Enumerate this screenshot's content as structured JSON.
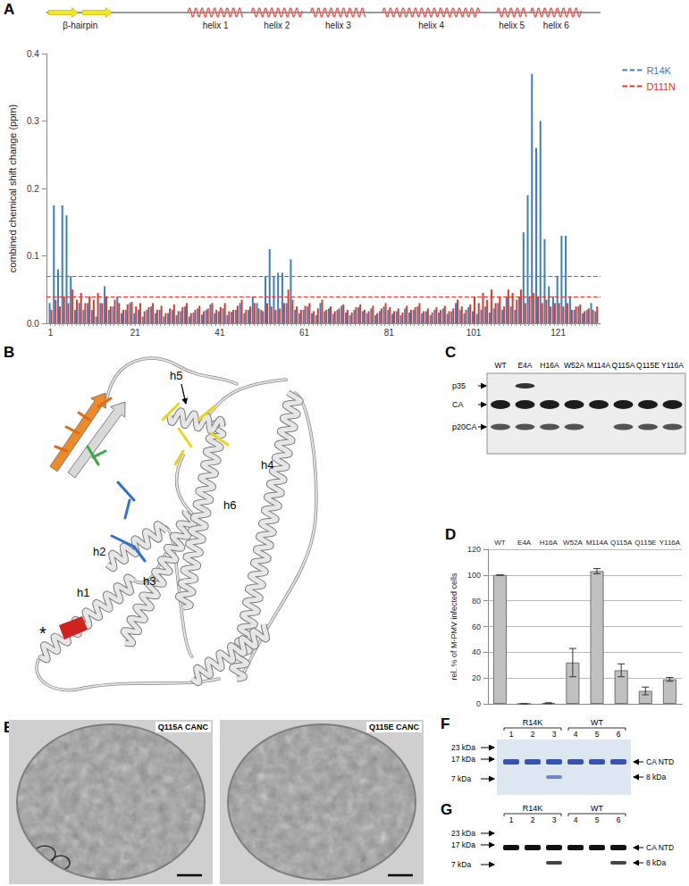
{
  "chart_data": [
    {
      "type": "bar",
      "panel_label": "A",
      "y_label": "combined chemical shift change (ppm)",
      "x": [
        1,
        2,
        3,
        4,
        5,
        6,
        7,
        8,
        9,
        10,
        11,
        12,
        13,
        14,
        15,
        16,
        17,
        18,
        19,
        20,
        21,
        22,
        23,
        24,
        25,
        26,
        27,
        28,
        29,
        30,
        31,
        32,
        33,
        34,
        35,
        36,
        37,
        38,
        39,
        40,
        41,
        42,
        43,
        44,
        45,
        46,
        47,
        48,
        49,
        50,
        51,
        52,
        53,
        54,
        55,
        56,
        57,
        58,
        59,
        60,
        61,
        62,
        63,
        64,
        65,
        66,
        67,
        68,
        69,
        70,
        71,
        72,
        73,
        74,
        75,
        76,
        77,
        78,
        79,
        80,
        81,
        82,
        83,
        84,
        85,
        86,
        87,
        88,
        89,
        90,
        91,
        92,
        93,
        94,
        95,
        96,
        97,
        98,
        99,
        100,
        101,
        102,
        103,
        104,
        105,
        106,
        107,
        108,
        109,
        110,
        111,
        112,
        113,
        114,
        115,
        116,
        117,
        118,
        119,
        120,
        121,
        122,
        123,
        124,
        125,
        126,
        127,
        128,
        129,
        130
      ],
      "xlim": [
        0,
        131
      ],
      "xticks": [
        1,
        21,
        41,
        61,
        81,
        101,
        121
      ],
      "ylim": [
        0,
        0.4
      ],
      "yticks": [
        {
          "value": 0,
          "label": "0.0"
        },
        {
          "value": 0.1,
          "label": "0.1"
        },
        {
          "value": 0.2,
          "label": "0.2"
        },
        {
          "value": 0.3,
          "label": "0.3"
        },
        {
          "value": 0.4,
          "label": "0.4"
        }
      ],
      "grid": false,
      "legend": "upper right",
      "series": [
        {
          "name": "R14K",
          "color": "#3d7ebf",
          "threshold": 0.072,
          "values": [
            0.03,
            0.175,
            0.08,
            0.175,
            0.16,
            0.07,
            0.02,
            0.03,
            0.02,
            0.03,
            0.02,
            0.01,
            0.03,
            0.055,
            0.02,
            0.025,
            0.04,
            0.015,
            0.02,
            0.03,
            0.015,
            0.02,
            0.01,
            0.02,
            0.025,
            0.015,
            0.02,
            0.01,
            0.015,
            0.02,
            0.012,
            0.018,
            0.025,
            0.01,
            0.016,
            0.022,
            0.013,
            0.02,
            0.028,
            0.015,
            0.018,
            0.022,
            0.012,
            0.017,
            0.02,
            0.03,
            0.015,
            0.02,
            0.04,
            0.03,
            0.02,
            0.07,
            0.11,
            0.07,
            0.075,
            0.075,
            0.03,
            0.095,
            0.02,
            0.015,
            0.02,
            0.025,
            0.015,
            0.012,
            0.03,
            0.018,
            0.022,
            0.014,
            0.02,
            0.026,
            0.016,
            0.012,
            0.02,
            0.024,
            0.018,
            0.015,
            0.022,
            0.012,
            0.018,
            0.025,
            0.02,
            0.014,
            0.018,
            0.012,
            0.022,
            0.016,
            0.02,
            0.025,
            0.015,
            0.018,
            0.012,
            0.02,
            0.016,
            0.022,
            0.014,
            0.018,
            0.03,
            0.02,
            0.015,
            0.024,
            0.018,
            0.014,
            0.02,
            0.025,
            0.016,
            0.022,
            0.03,
            0.02,
            0.04,
            0.025,
            0.02,
            0.04,
            0.135,
            0.19,
            0.37,
            0.26,
            0.3,
            0.125,
            0.055,
            0.04,
            0.07,
            0.13,
            0.13,
            0.04,
            0.02,
            0.025,
            0.015,
            0.02,
            0.03,
            0.018
          ]
        },
        {
          "name": "D111N",
          "color": "#d93a2b",
          "threshold": 0.035,
          "values": [
            0.02,
            0.035,
            0.025,
            0.04,
            0.03,
            0.05,
            0.035,
            0.045,
            0.03,
            0.04,
            0.035,
            0.045,
            0.03,
            0.04,
            0.025,
            0.035,
            0.03,
            0.02,
            0.028,
            0.032,
            0.025,
            0.03,
            0.018,
            0.024,
            0.03,
            0.02,
            0.026,
            0.015,
            0.022,
            0.028,
            0.018,
            0.024,
            0.03,
            0.015,
            0.02,
            0.026,
            0.018,
            0.022,
            0.03,
            0.02,
            0.024,
            0.03,
            0.018,
            0.02,
            0.026,
            0.035,
            0.02,
            0.025,
            0.03,
            0.022,
            0.018,
            0.03,
            0.025,
            0.02,
            0.022,
            0.03,
            0.05,
            0.035,
            0.025,
            0.02,
            0.026,
            0.03,
            0.018,
            0.022,
            0.035,
            0.02,
            0.025,
            0.018,
            0.022,
            0.028,
            0.02,
            0.016,
            0.024,
            0.028,
            0.02,
            0.018,
            0.026,
            0.015,
            0.022,
            0.03,
            0.024,
            0.018,
            0.022,
            0.016,
            0.026,
            0.02,
            0.024,
            0.03,
            0.018,
            0.022,
            0.016,
            0.024,
            0.02,
            0.026,
            0.018,
            0.022,
            0.035,
            0.025,
            0.02,
            0.028,
            0.04,
            0.03,
            0.045,
            0.035,
            0.05,
            0.03,
            0.04,
            0.025,
            0.05,
            0.045,
            0.035,
            0.05,
            0.03,
            0.04,
            0.045,
            0.04,
            0.03,
            0.035,
            0.025,
            0.03,
            0.03,
            0.025,
            0.03,
            0.02,
            0.025,
            0.028,
            0.018,
            0.022,
            0.02,
            0.025
          ]
        }
      ],
      "secondary_structure": [
        {
          "label": "β-hairpin",
          "elements": [
            {
              "kind": "strand",
              "start": 1,
              "end": 7
            },
            {
              "kind": "strand",
              "start": 9,
              "end": 15
            }
          ]
        },
        {
          "label": "helix 1",
          "elements": [
            {
              "kind": "helix",
              "start": 34,
              "end": 46
            }
          ]
        },
        {
          "label": "helix 2",
          "elements": [
            {
              "kind": "helix",
              "start": 49,
              "end": 60
            }
          ]
        },
        {
          "label": "helix 3",
          "elements": [
            {
              "kind": "helix",
              "start": 63,
              "end": 75
            }
          ]
        },
        {
          "label": "helix 4",
          "elements": [
            {
              "kind": "helix",
              "start": 80,
              "end": 102
            }
          ]
        },
        {
          "label": "helix 5",
          "elements": [
            {
              "kind": "helix",
              "start": 107,
              "end": 113
            }
          ]
        },
        {
          "label": "helix 6",
          "elements": [
            {
              "kind": "helix",
              "start": 115,
              "end": 126
            }
          ]
        }
      ]
    },
    {
      "type": "bar",
      "panel_label": "D",
      "y_label": "rel. % of M-PMV infected cells",
      "categories": [
        "WT",
        "E4A",
        "H16A",
        "W52A",
        "M114A",
        "Q115A",
        "Q115E",
        "Y116A"
      ],
      "values": [
        100,
        0,
        0.5,
        32,
        103,
        26,
        10,
        19
      ],
      "errors": [
        0,
        0,
        0.3,
        11,
        2,
        5,
        3,
        1.5
      ],
      "color": "#c0c0c0",
      "ylim": [
        0,
        120
      ],
      "yticks": [
        0,
        20,
        40,
        60,
        80,
        100,
        120
      ],
      "grid": true
    }
  ],
  "panels": {
    "B": {
      "panel_label": "B",
      "labels": [
        "h1",
        "h2",
        "h3",
        "h4",
        "h5",
        "h6",
        "*"
      ]
    },
    "C": {
      "panel_label": "C",
      "band_labels": [
        "p35",
        "CA",
        "p20CA"
      ],
      "lanes": [
        {
          "label": "WT",
          "bands": [
            "CA",
            "p20CA"
          ]
        },
        {
          "label": "E4A",
          "bands": [
            "p35",
            "CA",
            "p20CA"
          ]
        },
        {
          "label": "H16A",
          "bands": [
            "CA",
            "p20CA"
          ]
        },
        {
          "label": "W52A",
          "bands": [
            "CA",
            "p20CA"
          ]
        },
        {
          "label": "M114A",
          "bands": [
            "CA"
          ]
        },
        {
          "label": "Q115A",
          "bands": [
            "CA",
            "p20CA"
          ]
        },
        {
          "label": "Q115E",
          "bands": [
            "CA",
            "p20CA"
          ]
        },
        {
          "label": "Y116A",
          "bands": [
            "CA",
            "p20CA"
          ]
        }
      ]
    },
    "E": {
      "panel_label": "E",
      "images": [
        "Q115A CANC",
        "Q115E CANC"
      ]
    },
    "F": {
      "panel_label": "F",
      "markers": [
        "23 kDa",
        "17 kDa",
        "7 kDa"
      ],
      "band_labels": [
        "CA NTD",
        "8 kDa"
      ],
      "groups": [
        {
          "label": "R14K",
          "lanes": [
            "1",
            "2",
            "3"
          ]
        },
        {
          "label": "WT",
          "lanes": [
            "4",
            "5",
            "6"
          ]
        }
      ],
      "lanes": [
        {
          "label": "1",
          "bands": [
            "CA NTD"
          ]
        },
        {
          "label": "2",
          "bands": [
            "CA NTD"
          ]
        },
        {
          "label": "3",
          "bands": [
            "CA NTD",
            "8 kDa"
          ]
        },
        {
          "label": "4",
          "bands": [
            "CA NTD"
          ]
        },
        {
          "label": "5",
          "bands": [
            "CA NTD"
          ]
        },
        {
          "label": "6",
          "bands": [
            "CA NTD"
          ]
        }
      ]
    },
    "G": {
      "panel_label": "G",
      "markers": [
        "23 kDa",
        "17 kDa",
        "7 kDa"
      ],
      "band_labels": [
        "CA NTD",
        "8 kDa"
      ],
      "groups": [
        {
          "label": "R14K",
          "lanes": [
            "1",
            "2",
            "3"
          ]
        },
        {
          "label": "WT",
          "lanes": [
            "4",
            "5",
            "6"
          ]
        }
      ],
      "lanes": [
        {
          "label": "1",
          "bands": [
            "CA NTD"
          ]
        },
        {
          "label": "2",
          "bands": [
            "CA NTD"
          ]
        },
        {
          "label": "3",
          "bands": [
            "CA NTD",
            "8 kDa"
          ]
        },
        {
          "label": "4",
          "bands": [
            "CA NTD"
          ]
        },
        {
          "label": "5",
          "bands": [
            "CA NTD"
          ]
        },
        {
          "label": "6",
          "bands": [
            "CA NTD",
            "8 kDa"
          ]
        }
      ]
    }
  }
}
